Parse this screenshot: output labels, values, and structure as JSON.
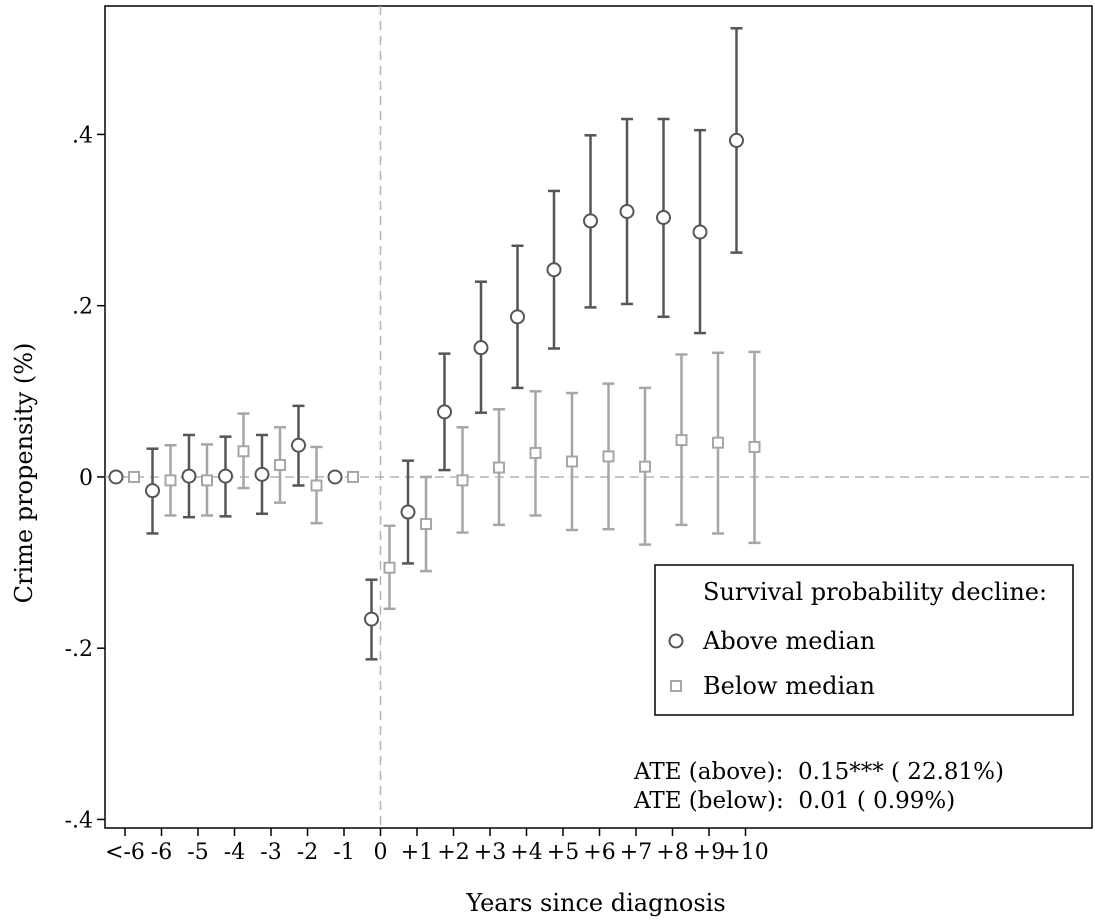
{
  "chart_data": {
    "type": "scatter",
    "xlabel": "Years since diagnosis",
    "ylabel": "Crime propensity (%)",
    "x_tick_labels": [
      "<-6",
      "-6",
      "-5",
      "-4",
      "-3",
      "-2",
      "-1",
      "0",
      "+1",
      "+2",
      "+3",
      "+4",
      "+5",
      "+6",
      "+7",
      "+8",
      "+9",
      "+10"
    ],
    "y_ticks": [
      -0.4,
      -0.2,
      0,
      0.2,
      0.4
    ],
    "y_tick_labels": [
      "-.4",
      "-.2",
      "0",
      ".2",
      ".4"
    ],
    "ylim": [
      -0.41,
      0.55
    ],
    "reference_lines": {
      "y": 0,
      "x": "0"
    },
    "legend": {
      "title": "Survival probability decline:",
      "placement": "right-middle"
    },
    "series": [
      {
        "name": "Above median",
        "marker": "circle",
        "color": "#555555",
        "values": [
          0,
          -0.016,
          0.001,
          0.001,
          0.003,
          0.037,
          0,
          -0.166,
          -0.041,
          0.076,
          0.151,
          0.187,
          0.242,
          0.299,
          0.31,
          0.303,
          0.286,
          0.393
        ],
        "ci_low": [
          null,
          -0.066,
          -0.047,
          -0.046,
          -0.043,
          -0.01,
          null,
          -0.213,
          -0.101,
          0.008,
          0.075,
          0.104,
          0.15,
          0.198,
          0.202,
          0.187,
          0.168,
          0.262
        ],
        "ci_high": [
          null,
          0.033,
          0.049,
          0.047,
          0.049,
          0.083,
          null,
          -0.12,
          0.019,
          0.144,
          0.228,
          0.27,
          0.334,
          0.399,
          0.418,
          0.418,
          0.405,
          0.524
        ]
      },
      {
        "name": "Below median",
        "marker": "square",
        "color": "#a6a6a6",
        "values": [
          0,
          -0.004,
          -0.004,
          0.03,
          0.014,
          -0.01,
          0,
          -0.106,
          -0.055,
          -0.004,
          0.011,
          0.028,
          0.018,
          0.024,
          0.012,
          0.043,
          0.04,
          0.035
        ],
        "ci_low": [
          null,
          -0.045,
          -0.045,
          -0.013,
          -0.03,
          -0.054,
          null,
          -0.154,
          -0.11,
          -0.065,
          -0.056,
          -0.045,
          -0.062,
          -0.061,
          -0.079,
          -0.056,
          -0.066,
          -0.077
        ],
        "ci_high": [
          null,
          0.037,
          0.038,
          0.074,
          0.058,
          0.035,
          null,
          -0.057,
          0.0,
          0.058,
          0.079,
          0.1,
          0.098,
          0.109,
          0.104,
          0.143,
          0.145,
          0.146
        ]
      }
    ],
    "annotations": [
      "ATE (above):  0.15*** ( 22.81%)",
      "ATE (below):  0.01 ( 0.99%)"
    ]
  }
}
